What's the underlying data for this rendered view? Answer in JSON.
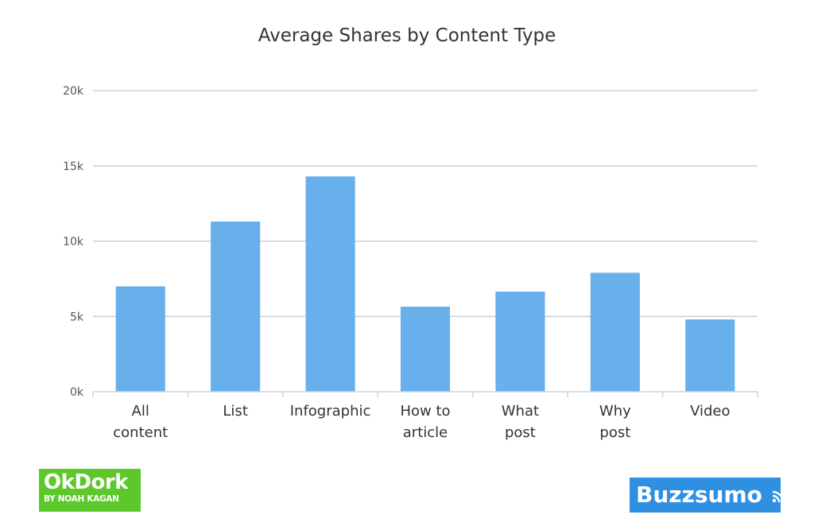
{
  "chart_data": {
    "type": "bar",
    "title": "Average Shares by Content Type",
    "xlabel": "",
    "ylabel": "",
    "categories": [
      [
        "All",
        "content"
      ],
      [
        "List"
      ],
      [
        "Infographic"
      ],
      [
        "How to",
        "article"
      ],
      [
        "What",
        "post"
      ],
      [
        "Why",
        "post"
      ],
      [
        "Video"
      ]
    ],
    "values": [
      7000,
      11300,
      14300,
      5650,
      6650,
      7900,
      4800
    ],
    "ylim": [
      0,
      20000
    ],
    "yticks": [
      0,
      5000,
      10000,
      15000,
      20000
    ],
    "ytick_labels": [
      "0k",
      "5k",
      "10k",
      "15k",
      "20k"
    ],
    "grid": true,
    "legend": "none",
    "bar_color": "#68b0ec",
    "gridline_color": "#c0c6d2",
    "axis_color": "#c8d4e8"
  },
  "logos": {
    "left_main": "OkDork",
    "left_sub": "BY NOAH KAGAN",
    "left_color": "#5cc82a",
    "right_text": "Buzzsumo",
    "right_color": "#2f8fe0"
  }
}
